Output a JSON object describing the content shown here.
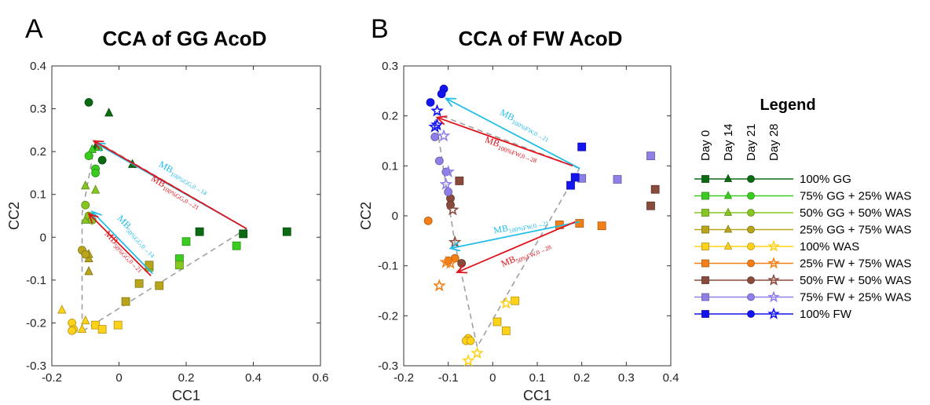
{
  "panels": [
    {
      "letter": "A",
      "title": "CCA of GG AcoD"
    },
    {
      "letter": "B",
      "title": "CCA of FW AcoD"
    }
  ],
  "chart_data": [
    {
      "type": "scatter",
      "title": "CCA of GG AcoD",
      "xlabel": "CC1",
      "ylabel": "CC2",
      "xlim": [
        -0.2,
        0.6
      ],
      "ylim": [
        -0.3,
        0.4
      ],
      "xticks": [
        "-0.2",
        "0",
        "0.2",
        "0.4",
        "0.6"
      ],
      "yticks": [
        "-0.3",
        "-0.2",
        "-0.1",
        "0",
        "0.1",
        "0.2",
        "0.3",
        "0.4"
      ],
      "series": [
        {
          "name": "100% GG",
          "color": "#0b6b12",
          "points": [
            {
              "day": 0,
              "x": 0.24,
              "y": 0.013
            },
            {
              "day": 0,
              "x": 0.37,
              "y": 0.008
            },
            {
              "day": 0,
              "x": 0.5,
              "y": 0.013
            },
            {
              "day": 14,
              "x": -0.03,
              "y": 0.29
            },
            {
              "day": 14,
              "x": 0.04,
              "y": 0.17
            },
            {
              "day": 14,
              "x": -0.07,
              "y": 0.21
            },
            {
              "day": 21,
              "x": -0.09,
              "y": 0.315
            },
            {
              "day": 21,
              "x": -0.05,
              "y": 0.18
            }
          ]
        },
        {
          "name": "75% GG + 25% WAS",
          "color": "#3acc1e",
          "points": [
            {
              "day": 0,
              "x": 0.2,
              "y": -0.01
            },
            {
              "day": 0,
              "x": 0.35,
              "y": -0.02
            },
            {
              "day": 0,
              "x": 0.18,
              "y": -0.05
            },
            {
              "day": 14,
              "x": -0.06,
              "y": 0.21
            },
            {
              "day": 14,
              "x": -0.08,
              "y": 0.205
            },
            {
              "day": 21,
              "x": -0.07,
              "y": 0.16
            },
            {
              "day": 21,
              "x": -0.07,
              "y": 0.15
            },
            {
              "day": 21,
              "x": -0.09,
              "y": 0.19
            }
          ]
        },
        {
          "name": "50% GG + 50% WAS",
          "color": "#86c620",
          "points": [
            {
              "day": 0,
              "x": 0.18,
              "y": -0.065
            },
            {
              "day": 0,
              "x": 0.09,
              "y": -0.07
            },
            {
              "day": 14,
              "x": -0.1,
              "y": 0.12
            },
            {
              "day": 14,
              "x": -0.07,
              "y": 0.11
            },
            {
              "day": 14,
              "x": -0.1,
              "y": 0.04
            },
            {
              "day": 21,
              "x": -0.1,
              "y": 0.075
            },
            {
              "day": 21,
              "x": -0.09,
              "y": 0.05
            },
            {
              "day": 21,
              "x": -0.08,
              "y": 0.04
            }
          ]
        },
        {
          "name": "25% GG + 75% WAS",
          "color": "#b8a51c",
          "points": [
            {
              "day": 0,
              "x": 0.09,
              "y": -0.065
            },
            {
              "day": 0,
              "x": 0.12,
              "y": -0.113
            },
            {
              "day": 0,
              "x": 0.06,
              "y": -0.108
            },
            {
              "day": 0,
              "x": 0.02,
              "y": -0.15
            },
            {
              "day": 14,
              "x": -0.09,
              "y": -0.08
            },
            {
              "day": 14,
              "x": -0.09,
              "y": -0.05
            },
            {
              "day": 14,
              "x": -0.09,
              "y": -0.04
            },
            {
              "day": 21,
              "x": -0.11,
              "y": -0.03
            },
            {
              "day": 21,
              "x": -0.1,
              "y": -0.04
            }
          ]
        },
        {
          "name": "100% WAS",
          "color": "#ffd21a",
          "points": [
            {
              "day": 0,
              "x": -0.07,
              "y": -0.205
            },
            {
              "day": 0,
              "x": -0.05,
              "y": -0.215
            },
            {
              "day": 0,
              "x": -0.003,
              "y": -0.205
            },
            {
              "day": 14,
              "x": -0.17,
              "y": -0.17
            },
            {
              "day": 14,
              "x": -0.1,
              "y": -0.195
            },
            {
              "day": 14,
              "x": -0.11,
              "y": -0.215
            },
            {
              "day": 21,
              "x": -0.14,
              "y": -0.2
            },
            {
              "day": 21,
              "x": -0.135,
              "y": -0.215
            },
            {
              "day": 21,
              "x": -0.14,
              "y": -0.218
            }
          ]
        }
      ],
      "centroid_path": [
        [
          0.38,
          0.02
        ],
        [
          -0.07,
          0.225
        ],
        [
          -0.11,
          0.055
        ],
        [
          -0.11,
          -0.22
        ],
        [
          0.38,
          0.02
        ]
      ],
      "arrows": [
        {
          "label": "MB",
          "sub": "100%GG,0→14",
          "color": "#23bdea",
          "from": [
            0.38,
            0.02
          ],
          "to": [
            -0.07,
            0.22
          ]
        },
        {
          "label": "MB",
          "sub": "100%GG,0→21",
          "color": "#e0121b",
          "from": [
            0.38,
            0.02
          ],
          "to": [
            -0.075,
            0.225
          ]
        },
        {
          "label": "MB",
          "sub": "50%GG,0→14",
          "color": "#23bdea",
          "from": [
            0.1,
            -0.085
          ],
          "to": [
            -0.08,
            0.06
          ]
        },
        {
          "label": "MB",
          "sub": "50%GG,0→21",
          "color": "#e0121b",
          "from": [
            0.095,
            -0.09
          ],
          "to": [
            -0.09,
            0.055
          ]
        }
      ]
    },
    {
      "type": "scatter",
      "title": "CCA of FW AcoD",
      "xlabel": "CC1",
      "ylabel": "CC2",
      "xlim": [
        -0.2,
        0.4
      ],
      "ylim": [
        -0.3,
        0.3
      ],
      "xticks": [
        "-0.2",
        "-0.1",
        "0",
        "0.1",
        "0.2",
        "0.3",
        "0.4"
      ],
      "yticks": [
        "-0.3",
        "-0.2",
        "-0.1",
        "0",
        "0.1",
        "0.2",
        "0.3"
      ],
      "series": [
        {
          "name": "100% WAS",
          "color": "#ffd21a",
          "points": [
            {
              "day": 0,
              "x": 0.01,
              "y": -0.212
            },
            {
              "day": 0,
              "x": 0.05,
              "y": -0.17
            },
            {
              "day": 0,
              "x": 0.03,
              "y": -0.23
            },
            {
              "day": 21,
              "x": -0.055,
              "y": -0.245
            },
            {
              "day": 21,
              "x": -0.06,
              "y": -0.25
            },
            {
              "day": 21,
              "x": -0.05,
              "y": -0.25
            },
            {
              "day": 28,
              "x": -0.035,
              "y": -0.275
            },
            {
              "day": 28,
              "x": 0.03,
              "y": -0.175
            },
            {
              "day": 28,
              "x": -0.055,
              "y": -0.29
            }
          ]
        },
        {
          "name": "25% FW + 75% WAS",
          "color": "#f57f17",
          "points": [
            {
              "day": 0,
              "x": 0.15,
              "y": -0.018
            },
            {
              "day": 0,
              "x": 0.195,
              "y": -0.015
            },
            {
              "day": 0,
              "x": 0.245,
              "y": -0.02
            },
            {
              "day": 21,
              "x": -0.085,
              "y": -0.085
            },
            {
              "day": 21,
              "x": -0.145,
              "y": -0.01
            },
            {
              "day": 21,
              "x": -0.1,
              "y": -0.09
            },
            {
              "day": 28,
              "x": -0.105,
              "y": -0.093
            },
            {
              "day": 28,
              "x": -0.12,
              "y": -0.14
            },
            {
              "day": 28,
              "x": -0.095,
              "y": -0.095
            }
          ]
        },
        {
          "name": "50% FW + 50% WAS",
          "color": "#8a4a3c",
          "points": [
            {
              "day": 0,
              "x": -0.075,
              "y": 0.07
            },
            {
              "day": 0,
              "x": 0.365,
              "y": 0.053
            },
            {
              "day": 0,
              "x": 0.355,
              "y": 0.02
            },
            {
              "day": 21,
              "x": -0.095,
              "y": 0.035
            },
            {
              "day": 21,
              "x": -0.095,
              "y": 0.022
            },
            {
              "day": 21,
              "x": -0.07,
              "y": -0.095
            },
            {
              "day": 28,
              "x": -0.09,
              "y": 0.012
            },
            {
              "day": 28,
              "x": -0.085,
              "y": -0.053
            }
          ]
        },
        {
          "name": "75% FW + 25% WAS",
          "color": "#8f80e8",
          "points": [
            {
              "day": 0,
              "x": 0.2,
              "y": 0.075
            },
            {
              "day": 0,
              "x": 0.28,
              "y": 0.073
            },
            {
              "day": 0,
              "x": 0.355,
              "y": 0.12
            },
            {
              "day": 21,
              "x": -0.13,
              "y": 0.158
            },
            {
              "day": 21,
              "x": -0.12,
              "y": 0.11
            },
            {
              "day": 21,
              "x": -0.105,
              "y": 0.088
            },
            {
              "day": 21,
              "x": -0.1,
              "y": 0.048
            },
            {
              "day": 28,
              "x": -0.11,
              "y": 0.16
            },
            {
              "day": 28,
              "x": -0.1,
              "y": 0.088
            },
            {
              "day": 28,
              "x": -0.105,
              "y": 0.063
            }
          ]
        },
        {
          "name": "100% FW",
          "color": "#1414f0",
          "points": [
            {
              "day": 0,
              "x": 0.2,
              "y": 0.138
            },
            {
              "day": 0,
              "x": 0.185,
              "y": 0.077
            },
            {
              "day": 0,
              "x": 0.175,
              "y": 0.061
            },
            {
              "day": 21,
              "x": -0.11,
              "y": 0.254
            },
            {
              "day": 21,
              "x": -0.115,
              "y": 0.244
            },
            {
              "day": 21,
              "x": -0.14,
              "y": 0.227
            },
            {
              "day": 28,
              "x": -0.125,
              "y": 0.21
            },
            {
              "day": 28,
              "x": -0.125,
              "y": 0.182
            },
            {
              "day": 28,
              "x": -0.13,
              "y": 0.178
            }
          ]
        }
      ],
      "centroid_path": [
        [
          0.195,
          0.095
        ],
        [
          -0.13,
          0.205
        ],
        [
          -0.085,
          -0.055
        ],
        [
          -0.035,
          -0.262
        ],
        [
          0.195,
          0.095
        ]
      ],
      "arrows": [
        {
          "label": "MB",
          "sub": "100%FW,0→21",
          "color": "#23bdea",
          "from": [
            0.195,
            0.095
          ],
          "to": [
            -0.105,
            0.235
          ]
        },
        {
          "label": "MB",
          "sub": "100%FW,0→28",
          "color": "#e0121b",
          "from": [
            0.18,
            0.1
          ],
          "to": [
            -0.125,
            0.197
          ]
        },
        {
          "label": "MB",
          "sub": "100%FW,0→21",
          "color": "#23bdea",
          "from": [
            0.195,
            -0.012
          ],
          "to": [
            -0.095,
            -0.065
          ]
        },
        {
          "label": "MB",
          "sub": "50%FW,0→28",
          "color": "#e0121b",
          "from": [
            0.185,
            -0.012
          ],
          "to": [
            -0.08,
            -0.113
          ]
        }
      ]
    }
  ],
  "legend": {
    "title": "Legend",
    "columns": [
      "Day 0",
      "Day 14",
      "Day 21",
      "Day 28"
    ],
    "items": [
      {
        "label": "100% GG",
        "color": "#0b6b12",
        "markers": [
          "square",
          "triangle",
          "circle",
          ""
        ]
      },
      {
        "label": "75% GG + 25% WAS",
        "color": "#3acc1e",
        "markers": [
          "square",
          "triangle",
          "circle",
          ""
        ]
      },
      {
        "label": "50% GG + 50% WAS",
        "color": "#86c620",
        "markers": [
          "square",
          "triangle",
          "circle",
          ""
        ]
      },
      {
        "label": "25% GG + 75% WAS",
        "color": "#b8a51c",
        "markers": [
          "square",
          "triangle",
          "circle",
          ""
        ]
      },
      {
        "label": "100% WAS",
        "color": "#ffd21a",
        "markers": [
          "square",
          "triangle",
          "circle",
          "star"
        ]
      },
      {
        "label": "25% FW + 75% WAS",
        "color": "#f57f17",
        "markers": [
          "square",
          "",
          "circle",
          "star"
        ]
      },
      {
        "label": "50% FW + 50% WAS",
        "color": "#8a4a3c",
        "markers": [
          "square",
          "",
          "circle",
          "star"
        ]
      },
      {
        "label": "75% FW + 25% WAS",
        "color": "#8f80e8",
        "markers": [
          "square",
          "",
          "circle",
          "star"
        ]
      },
      {
        "label": "100% FW",
        "color": "#1414f0",
        "markers": [
          "square",
          "",
          "circle",
          "star"
        ]
      }
    ]
  }
}
